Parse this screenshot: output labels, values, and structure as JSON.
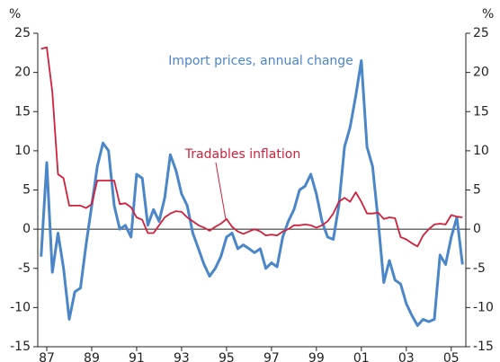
{
  "chart_data": {
    "type": "line",
    "y_axis_label": "%",
    "y2_axis_label": "%",
    "annotations": [
      {
        "text": "Import prices, annual change",
        "series": 0
      },
      {
        "text": "Tradables inflation",
        "series": 1
      }
    ],
    "x": [
      1986.75,
      1987,
      1987.25,
      1987.5,
      1987.75,
      1988,
      1988.25,
      1988.5,
      1988.75,
      1989,
      1989.25,
      1989.5,
      1989.75,
      1990,
      1990.25,
      1990.5,
      1990.75,
      1991,
      1991.25,
      1991.5,
      1991.75,
      1992,
      1992.25,
      1992.5,
      1992.75,
      1993,
      1993.25,
      1993.5,
      1993.75,
      1994,
      1994.25,
      1994.5,
      1994.75,
      1995,
      1995.25,
      1995.5,
      1995.75,
      1996,
      1996.25,
      1996.5,
      1996.75,
      1997,
      1997.25,
      1997.5,
      1997.75,
      1998,
      1998.25,
      1998.5,
      1998.75,
      1999,
      1999.25,
      1999.5,
      1999.75,
      2000,
      2000.25,
      2000.5,
      2000.75,
      2001,
      2001.25,
      2001.5,
      2001.75,
      2002,
      2002.25,
      2002.5,
      2002.75,
      2003,
      2003.25,
      2003.5,
      2003.75,
      2004,
      2004.25,
      2004.5,
      2004.75,
      2005,
      2005.25,
      2005.5
    ],
    "series": [
      {
        "name": "Import prices, annual change",
        "color": "#4a86c8",
        "values": [
          -3.5,
          8.5,
          -5.5,
          -0.5,
          -5,
          -11.5,
          -8,
          -7.5,
          -2,
          3,
          8,
          11,
          10,
          3,
          0,
          0.5,
          -1,
          7,
          6.5,
          0.5,
          2.5,
          1,
          4,
          9.5,
          7.5,
          4.5,
          3,
          -0.5,
          -2.5,
          -4.5,
          -6,
          -5,
          -3.5,
          -1,
          -0.5,
          -2.5,
          -2,
          -2.5,
          -3,
          -2.5,
          -5,
          -4.3,
          -4.8,
          -1,
          1,
          2.5,
          5,
          5.5,
          7,
          4.5,
          1,
          -1,
          -1.3,
          3,
          10.5,
          13,
          17,
          21.5,
          10.5,
          8,
          1,
          -6.8,
          -4,
          -6.5,
          -7,
          -9.5,
          -11,
          -12.3,
          -11.5,
          -11.8,
          -11.5,
          -3.3,
          -4.5,
          -1,
          1.5,
          -4.5
        ]
      },
      {
        "name": "Tradables inflation",
        "color": "#d0203c",
        "values": [
          23,
          23.2,
          17.5,
          7,
          6.5,
          3,
          3,
          3,
          2.7,
          3.2,
          6.2,
          6.2,
          6.2,
          6.2,
          3.2,
          3.3,
          2.8,
          1.5,
          1.2,
          -0.5,
          -0.5,
          0.5,
          1.5,
          2,
          2.3,
          2.2,
          1.5,
          1,
          0.5,
          0.2,
          -0.2,
          0.3,
          0.7,
          1.3,
          0.3,
          -0.3,
          -0.6,
          -0.3,
          0,
          -0.3,
          -0.8,
          -0.7,
          -0.8,
          -0.3,
          0,
          0.5,
          0.5,
          0.6,
          0.5,
          0.2,
          0.5,
          1,
          2,
          3.5,
          4,
          3.5,
          4.7,
          3.5,
          2,
          2,
          2.1,
          1.3,
          1.5,
          1.4,
          -1,
          -1.3,
          -1.8,
          -2.2,
          -0.8,
          0,
          0.6,
          0.7,
          0.6,
          1.8,
          1.6,
          1.5
        ]
      }
    ],
    "xlim": [
      1986.6,
      2005.65
    ],
    "xticks": [
      {
        "value": 1987,
        "label": "87"
      },
      {
        "value": 1989,
        "label": "89"
      },
      {
        "value": 1991,
        "label": "91"
      },
      {
        "value": 1993,
        "label": "93"
      },
      {
        "value": 1995,
        "label": "95"
      },
      {
        "value": 1997,
        "label": "97"
      },
      {
        "value": 1999,
        "label": "99"
      },
      {
        "value": 2001,
        "label": "01"
      },
      {
        "value": 2003,
        "label": "03"
      },
      {
        "value": 2005,
        "label": "05"
      }
    ],
    "ylim": [
      -15,
      25
    ],
    "yticks": [
      -15,
      -10,
      -5,
      0,
      5,
      10,
      15,
      20,
      25
    ],
    "y2lim": [
      -15,
      25
    ],
    "y2ticks": [
      -15,
      -10,
      -5,
      0,
      5,
      10,
      15,
      20,
      25
    ]
  }
}
